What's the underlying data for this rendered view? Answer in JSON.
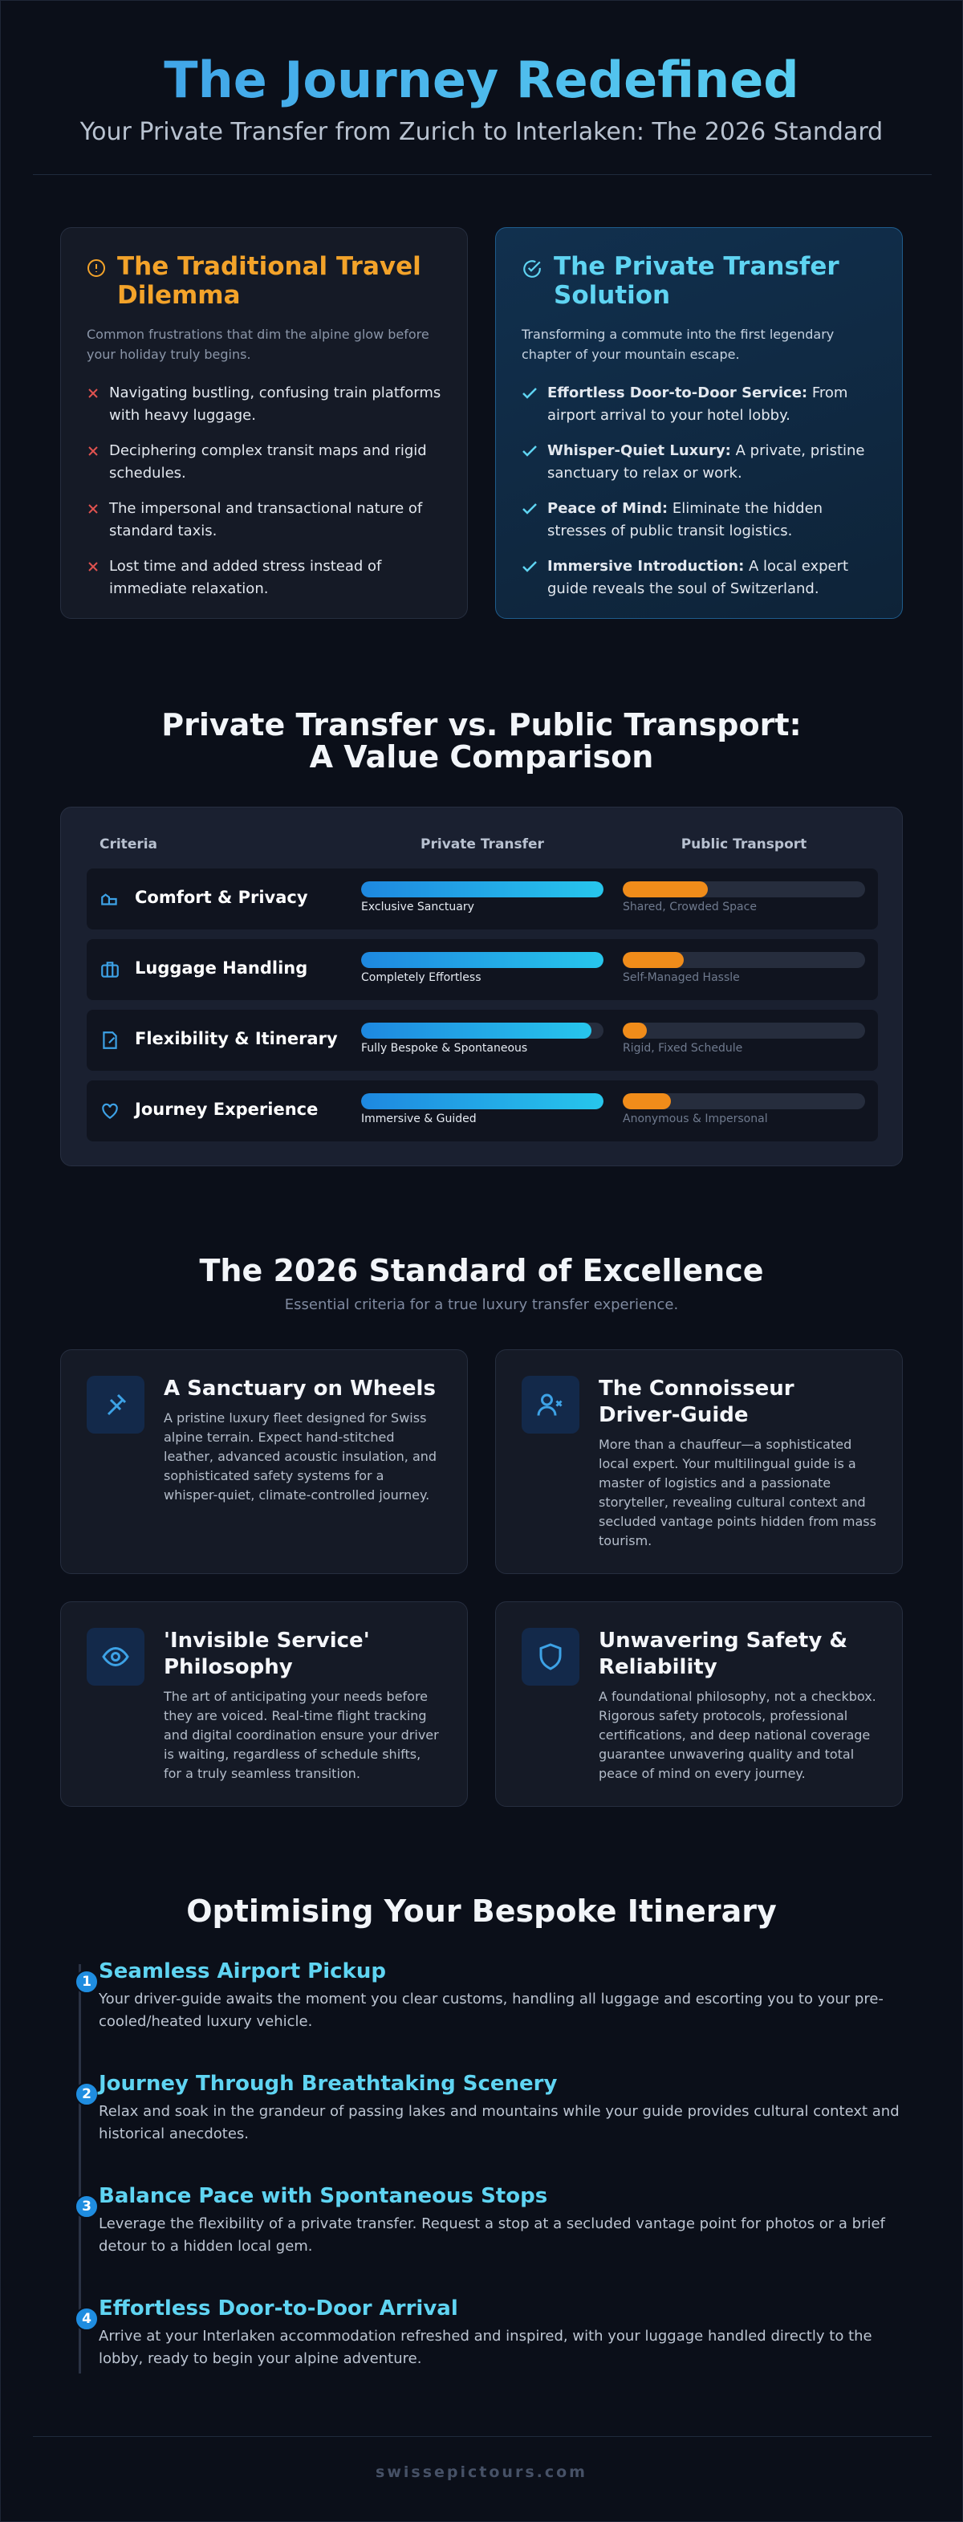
{
  "header": {
    "title": "The Journey Redefined",
    "subtitle": "Your Private Transfer from Zurich to Interlaken: The 2026 Standard"
  },
  "problem": {
    "title": "The Traditional Travel Dilemma",
    "description": "Common frustrations that dim the alpine glow before your holiday truly begins.",
    "items": [
      "Navigating bustling, confusing train platforms with heavy luggage.",
      "Deciphering complex transit maps and rigid schedules.",
      "The impersonal and transactional nature of standard taxis.",
      "Lost time and added stress instead of immediate relaxation."
    ]
  },
  "solution": {
    "title": "The Private Transfer Solution",
    "description": "Transforming a commute into the first legendary chapter of your mountain escape.",
    "items": [
      {
        "lead": "Effortless Door-to-Door Service:",
        "text": "From airport arrival to your hotel lobby."
      },
      {
        "lead": "Whisper-Quiet Luxury:",
        "text": "A private, pristine sanctuary to relax or work."
      },
      {
        "lead": "Peace of Mind:",
        "text": "Eliminate the hidden stresses of public transit logistics."
      },
      {
        "lead": "Immersive Introduction:",
        "text": "A local expert guide reveals the soul of Switzerland."
      }
    ]
  },
  "comparison": {
    "title": "Private Transfer vs. Public Transport: A Value Comparison",
    "headers": [
      "Criteria",
      "Private Transfer",
      "Public Transport"
    ],
    "rows": [
      {
        "criterion": "Comfort & Privacy",
        "private": {
          "value": 100,
          "label": "Exclusive Sanctuary"
        },
        "public": {
          "value": 35,
          "label": "Shared, Crowded Space"
        }
      },
      {
        "criterion": "Luggage Handling",
        "private": {
          "value": 100,
          "label": "Completely Effortless"
        },
        "public": {
          "value": 25,
          "label": "Self-Managed Hassle"
        }
      },
      {
        "criterion": "Flexibility & Itinerary",
        "private": {
          "value": 95,
          "label": "Fully Bespoke & Spontaneous"
        },
        "public": {
          "value": 10,
          "label": "Rigid, Fixed Schedule"
        }
      },
      {
        "criterion": "Journey Experience",
        "private": {
          "value": 100,
          "label": "Immersive & Guided"
        },
        "public": {
          "value": 20,
          "label": "Anonymous & Impersonal"
        }
      }
    ]
  },
  "standards": {
    "title": "The 2026 Standard of Excellence",
    "subtitle": "Essential criteria for a true luxury transfer experience.",
    "cards": [
      {
        "title": "A Sanctuary on Wheels",
        "description": "A pristine luxury fleet designed for Swiss alpine terrain. Expect hand-stitched leather, advanced acoustic insulation, and sophisticated safety systems for a whisper-quiet, climate-controlled journey."
      },
      {
        "title": "The Connoisseur Driver-Guide",
        "description": "More than a chauffeur—a sophisticated local expert. Your multilingual guide is a master of logistics and a passionate storyteller, revealing cultural context and secluded vantage points hidden from mass tourism."
      },
      {
        "title": "'Invisible Service' Philosophy",
        "description": "The art of anticipating your needs before they are voiced. Real-time flight tracking and digital coordination ensure your driver is waiting, regardless of schedule shifts, for a truly seamless transition."
      },
      {
        "title": "Unwavering Safety & Reliability",
        "description": "A foundational philosophy, not a checkbox. Rigorous safety protocols, professional certifications, and deep national coverage guarantee unwavering quality and total peace of mind on every journey."
      }
    ]
  },
  "itinerary": {
    "title": "Optimising Your Bespoke Itinerary",
    "steps": [
      {
        "number": 1,
        "title": "Seamless Airport Pickup",
        "description": "Your driver-guide awaits the moment you clear customs, handling all luggage and escorting you to your pre-cooled/heated luxury vehicle."
      },
      {
        "number": 2,
        "title": "Journey Through Breathtaking Scenery",
        "description": "Relax and soak in the grandeur of passing lakes and mountains while your guide provides cultural context and historical anecdotes."
      },
      {
        "number": 3,
        "title": "Balance Pace with Spontaneous Stops",
        "description": "Leverage the flexibility of a private transfer. Request a stop at a secluded vantage point for photos or a brief detour to a hidden local gem."
      },
      {
        "number": 4,
        "title": "Effortless Door-to-Door Arrival",
        "description": "Arrive at your Interlaken accommodation refreshed and inspired, with your luggage handled directly to the lobby, ready to begin your alpine adventure."
      }
    ]
  },
  "footer": {
    "text": "swissepictours.com"
  }
}
